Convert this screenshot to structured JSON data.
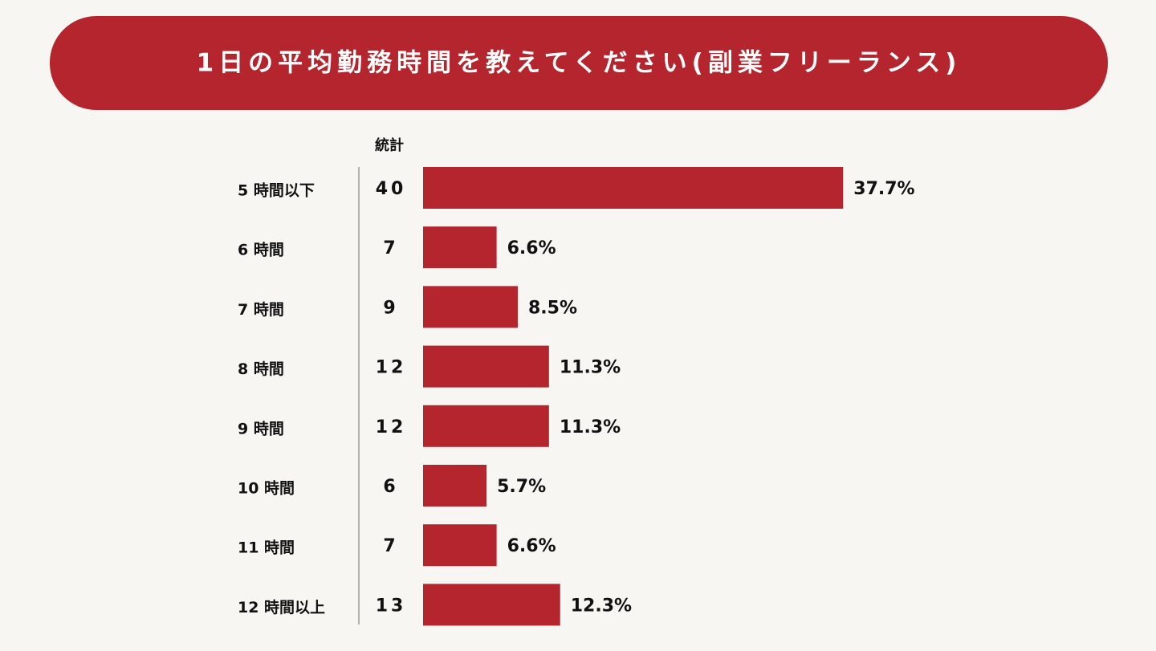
{
  "chart_data": {
    "type": "bar",
    "title": "1日の平均勤務時間を教えてください(副業フリーランス)",
    "count_header": "統計",
    "categories": [
      "5 時間以下",
      "6 時間",
      "7 時間",
      "8 時間",
      "9 時間",
      "10 時間",
      "11 時間",
      "12 時間以上"
    ],
    "counts": [
      40,
      7,
      9,
      12,
      12,
      6,
      7,
      13
    ],
    "values": [
      37.7,
      6.6,
      8.5,
      11.3,
      11.3,
      5.7,
      6.6,
      12.3
    ],
    "value_labels": [
      "37.7%",
      "6.6%",
      "8.5%",
      "11.3%",
      "11.3%",
      "5.7%",
      "6.6%",
      "12.3%"
    ],
    "color": "#b5252d"
  }
}
